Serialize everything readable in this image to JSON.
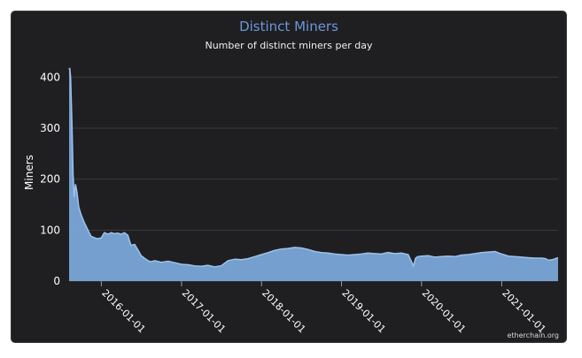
{
  "chart_data": {
    "type": "area",
    "title": "Distinct Miners",
    "subtitle": "Number of distinct miners per day",
    "xlabel": "",
    "ylabel": "Miners",
    "ylim": [
      0,
      430
    ],
    "yticks": [
      0,
      100,
      200,
      300,
      400
    ],
    "xlim": [
      "2015-08-07",
      "2021-09-15"
    ],
    "xticks": [
      "2016-01-01",
      "2017-01-01",
      "2018-01-01",
      "2019-01-01",
      "2020-01-01",
      "2021-01-01"
    ],
    "grid": true,
    "colors": {
      "fill": "#7aa6d8",
      "line": "#9ec1ea",
      "title": "#6b97d8"
    },
    "series": [
      {
        "x": [
          "2015-08-07",
          "2015-08-10",
          "2015-08-14",
          "2015-08-20",
          "2015-08-25",
          "2015-08-30",
          "2015-09-05",
          "2015-09-12",
          "2015-09-20",
          "2015-10-01",
          "2015-10-15",
          "2015-11-01",
          "2015-11-15",
          "2015-12-01",
          "2015-12-15",
          "2016-01-01",
          "2016-01-15",
          "2016-02-01",
          "2016-02-15",
          "2016-03-01",
          "2016-03-15",
          "2016-04-01",
          "2016-04-15",
          "2016-05-01",
          "2016-05-15",
          "2016-06-01",
          "2016-06-15",
          "2016-07-01",
          "2016-07-15",
          "2016-08-01",
          "2016-08-15",
          "2016-09-01",
          "2016-10-01",
          "2016-11-01",
          "2016-12-01",
          "2017-01-01",
          "2017-02-01",
          "2017-03-01",
          "2017-04-01",
          "2017-05-01",
          "2017-06-01",
          "2017-07-01",
          "2017-08-01",
          "2017-09-01",
          "2017-10-01",
          "2017-11-01",
          "2017-12-01",
          "2018-01-01",
          "2018-02-01",
          "2018-03-01",
          "2018-04-01",
          "2018-05-01",
          "2018-06-01",
          "2018-07-01",
          "2018-08-01",
          "2018-09-01",
          "2018-10-01",
          "2018-11-01",
          "2018-12-01",
          "2019-01-01",
          "2019-02-01",
          "2019-03-01",
          "2019-04-01",
          "2019-05-01",
          "2019-06-01",
          "2019-07-01",
          "2019-08-01",
          "2019-09-01",
          "2019-10-01",
          "2019-11-01",
          "2019-11-25",
          "2019-12-05",
          "2019-12-15",
          "2020-01-01",
          "2020-02-01",
          "2020-03-01",
          "2020-04-01",
          "2020-05-01",
          "2020-06-01",
          "2020-07-01",
          "2020-08-01",
          "2020-09-01",
          "2020-10-01",
          "2020-11-01",
          "2020-12-01",
          "2021-01-01",
          "2021-02-01",
          "2021-03-01",
          "2021-04-01",
          "2021-05-01",
          "2021-06-01",
          "2021-07-01",
          "2021-07-20",
          "2021-08-01",
          "2021-08-20",
          "2021-09-15"
        ],
        "values": [
          415,
          418,
          400,
          310,
          210,
          165,
          190,
          175,
          145,
          130,
          115,
          100,
          88,
          85,
          83,
          85,
          95,
          92,
          95,
          93,
          94,
          92,
          95,
          90,
          70,
          72,
          62,
          50,
          45,
          40,
          38,
          40,
          37,
          39,
          36,
          33,
          32,
          30,
          29,
          31,
          28,
          30,
          40,
          43,
          42,
          44,
          48,
          52,
          56,
          60,
          63,
          64,
          66,
          65,
          62,
          58,
          56,
          55,
          53,
          52,
          51,
          52,
          53,
          55,
          54,
          53,
          56,
          54,
          55,
          52,
          30,
          45,
          48,
          49,
          50,
          47,
          48,
          49,
          48,
          51,
          52,
          54,
          56,
          57,
          58,
          53,
          49,
          48,
          47,
          46,
          45,
          45,
          44,
          41,
          42,
          46
        ]
      }
    ]
  },
  "credit": "etherchain.org"
}
